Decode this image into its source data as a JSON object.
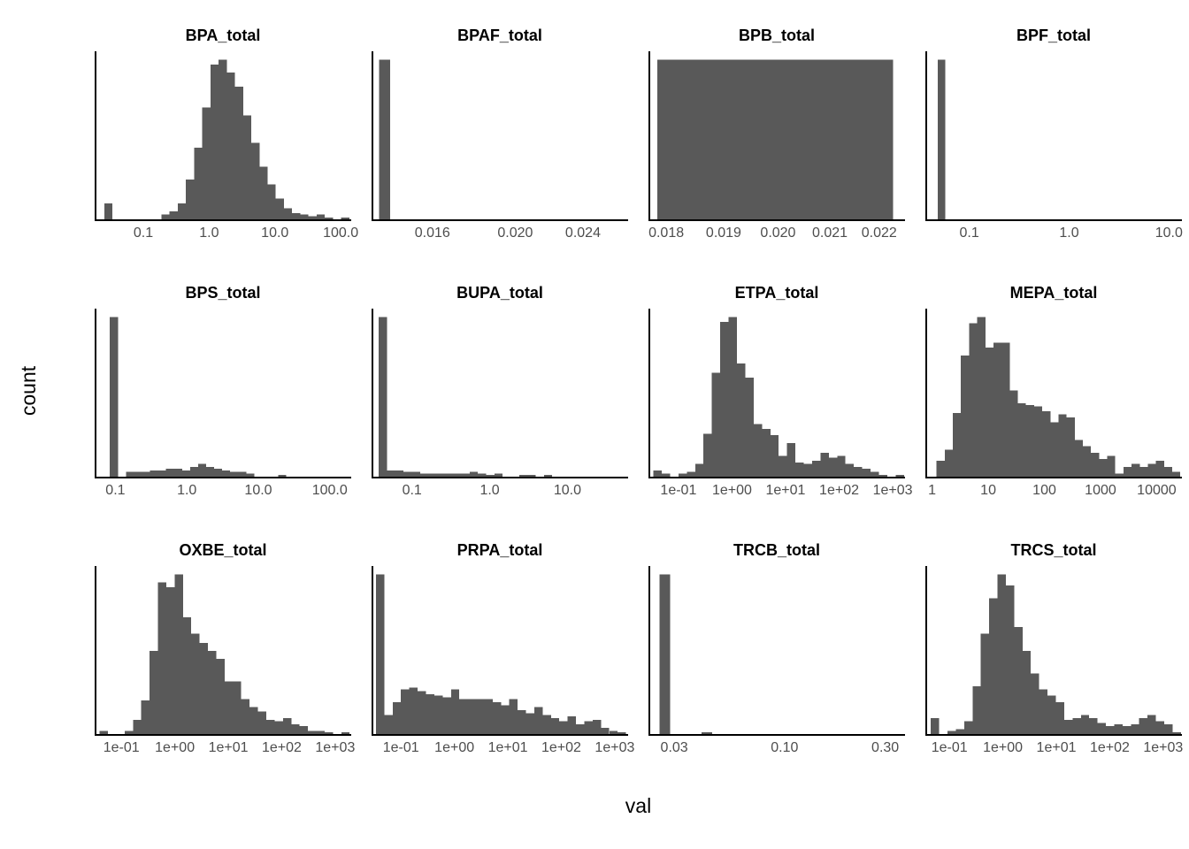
{
  "figure": {
    "y_axis_label": "count",
    "x_axis_label": "val"
  },
  "colors": {
    "bar_fill": "#595959",
    "axis_line": "#000000",
    "tick_label": "#4d4d4d",
    "strip_text": "#000000",
    "background": "#ffffff"
  },
  "chart_data": [
    {
      "type": "bar",
      "subtype": "histogram-log-x",
      "title": "BPA_total",
      "ylabel": "count",
      "y_units": "relative_pct_of_facet_max (no y tick labels shown)",
      "xlim_log10": [
        -1.74,
        2.16
      ],
      "x_ticks": [
        {
          "label": "0.1",
          "value": 0.1
        },
        {
          "label": "1.0",
          "value": 1.0
        },
        {
          "label": "10.0",
          "value": 10.0
        },
        {
          "label": "100.0",
          "value": 100.0
        }
      ],
      "bins": {
        "start_log10": -1.62,
        "width_log10": 0.125,
        "heights_rel": [
          10,
          0,
          0,
          0,
          0,
          0,
          0,
          3,
          5,
          10,
          25,
          45,
          70,
          97,
          100,
          92,
          83,
          65,
          48,
          33,
          22,
          13,
          7,
          4,
          3,
          2,
          3,
          1,
          0,
          1
        ]
      }
    },
    {
      "type": "bar",
      "subtype": "histogram-log-x",
      "title": "BPAF_total",
      "ylabel": "count",
      "y_units": "relative_pct_of_facet_max",
      "xlim_log10": [
        -1.867,
        -1.567
      ],
      "x_ticks": [
        {
          "label": "0.016",
          "value": 0.016
        },
        {
          "label": "0.020",
          "value": 0.02
        },
        {
          "label": "0.024",
          "value": 0.024
        }
      ],
      "bins": {
        "start_log10": -1.86,
        "width_log10": 0.013,
        "heights_rel": [
          100
        ]
      }
    },
    {
      "type": "bar",
      "subtype": "histogram-log-x",
      "title": "BPB_total",
      "ylabel": "count",
      "y_units": "relative_pct_of_facet_max",
      "xlim_log10": [
        -1.752,
        -1.647
      ],
      "x_ticks": [
        {
          "label": "0.018",
          "value": 0.018
        },
        {
          "label": "0.019",
          "value": 0.019
        },
        {
          "label": "0.020",
          "value": 0.02
        },
        {
          "label": "0.021",
          "value": 0.021
        },
        {
          "label": "0.022",
          "value": 0.022
        }
      ],
      "bins": {
        "start_log10": -1.749,
        "width_log10": 0.097,
        "heights_rel": [
          100
        ]
      }
    },
    {
      "type": "bar",
      "subtype": "histogram-log-x",
      "title": "BPF_total",
      "ylabel": "count",
      "y_units": "relative_pct_of_facet_max",
      "xlim_log10": [
        -1.44,
        1.13
      ],
      "x_ticks": [
        {
          "label": "0.1",
          "value": 0.1
        },
        {
          "label": "1.0",
          "value": 1.0
        },
        {
          "label": "10.0",
          "value": 10.0
        }
      ],
      "bins": {
        "start_log10": -1.335,
        "width_log10": 0.08,
        "heights_rel": [
          100
        ]
      }
    },
    {
      "type": "bar",
      "subtype": "histogram-log-x",
      "title": "BPS_total",
      "ylabel": "count",
      "y_units": "relative_pct_of_facet_max",
      "xlim_log10": [
        -1.29,
        2.3
      ],
      "x_ticks": [
        {
          "label": "0.1",
          "value": 0.1
        },
        {
          "label": "1.0",
          "value": 1.0
        },
        {
          "label": "10.0",
          "value": 10.0
        },
        {
          "label": "100.0",
          "value": 100.0
        }
      ],
      "bins": {
        "start_log10": -1.1,
        "width_log10": 0.113,
        "heights_rel": [
          100,
          0,
          3,
          3,
          3,
          4,
          4,
          5,
          5,
          4,
          6,
          8,
          6,
          5,
          4,
          3,
          3,
          2,
          0,
          0,
          0,
          1,
          0,
          0,
          0,
          0,
          0,
          0,
          0,
          0
        ]
      }
    },
    {
      "type": "bar",
      "subtype": "histogram-log-x",
      "title": "BUPA_total",
      "ylabel": "count",
      "y_units": "relative_pct_of_facet_max",
      "xlim_log10": [
        -1.52,
        1.78
      ],
      "x_ticks": [
        {
          "label": "0.1",
          "value": 0.1
        },
        {
          "label": "1.0",
          "value": 1.0
        },
        {
          "label": "10.0",
          "value": 10.0
        }
      ],
      "bins": {
        "start_log10": -1.45,
        "width_log10": 0.107,
        "heights_rel": [
          100,
          4,
          4,
          3,
          3,
          2,
          2,
          2,
          2,
          2,
          2,
          3,
          2,
          1,
          2,
          0,
          0,
          1,
          1,
          0,
          1,
          0,
          0,
          0,
          0,
          0,
          0,
          0,
          0,
          0
        ]
      }
    },
    {
      "type": "bar",
      "subtype": "histogram-log-x",
      "title": "ETPA_total",
      "ylabel": "count",
      "y_units": "relative_pct_of_facet_max",
      "xlim_log10": [
        -1.56,
        3.23
      ],
      "x_ticks": [
        {
          "label": "1e-01",
          "value": 0.1
        },
        {
          "label": "1e+00",
          "value": 1
        },
        {
          "label": "1e+01",
          "value": 10
        },
        {
          "label": "1e+02",
          "value": 100
        },
        {
          "label": "1e+03",
          "value": 1000
        }
      ],
      "bins": {
        "start_log10": -1.5,
        "width_log10": 0.157,
        "heights_rel": [
          4,
          2,
          0,
          2,
          3,
          8,
          27,
          65,
          97,
          100,
          71,
          62,
          33,
          30,
          26,
          13,
          21,
          9,
          8,
          10,
          15,
          12,
          13,
          8,
          6,
          5,
          3,
          1,
          0,
          1
        ]
      }
    },
    {
      "type": "bar",
      "subtype": "histogram-log-x",
      "title": "MEPA_total",
      "ylabel": "count",
      "y_units": "relative_pct_of_facet_max",
      "xlim_log10": [
        -0.12,
        4.45
      ],
      "x_ticks": [
        {
          "label": "1",
          "value": 1
        },
        {
          "label": "10",
          "value": 10
        },
        {
          "label": "100",
          "value": 100
        },
        {
          "label": "1000",
          "value": 1000
        },
        {
          "label": "10000",
          "value": 10000
        }
      ],
      "bins": {
        "start_log10": 0.05,
        "width_log10": 0.1457,
        "heights_rel": [
          10,
          17,
          40,
          76,
          96,
          100,
          81,
          84,
          84,
          54,
          46,
          45,
          44,
          41,
          34,
          39,
          37,
          23,
          19,
          15,
          11,
          13,
          2,
          6,
          8,
          6,
          8,
          10,
          6,
          3
        ]
      }
    },
    {
      "type": "bar",
      "subtype": "histogram-log-x",
      "title": "OXBE_total",
      "ylabel": "count",
      "y_units": "relative_pct_of_facet_max",
      "xlim_log10": [
        -1.5,
        3.3
      ],
      "x_ticks": [
        {
          "label": "1e-01",
          "value": 0.1
        },
        {
          "label": "1e+00",
          "value": 1
        },
        {
          "label": "1e+01",
          "value": 10
        },
        {
          "label": "1e+02",
          "value": 100
        },
        {
          "label": "1e+03",
          "value": 1000
        }
      ],
      "bins": {
        "start_log10": -1.44,
        "width_log10": 0.157,
        "heights_rel": [
          2,
          0,
          0,
          2,
          9,
          21,
          52,
          95,
          92,
          100,
          73,
          63,
          57,
          52,
          47,
          33,
          33,
          22,
          17,
          14,
          9,
          8,
          10,
          6,
          5,
          2,
          2,
          1,
          0,
          1
        ]
      }
    },
    {
      "type": "bar",
      "subtype": "histogram-log-x",
      "title": "PRPA_total",
      "ylabel": "count",
      "y_units": "relative_pct_of_facet_max",
      "xlim_log10": [
        -1.55,
        3.25
      ],
      "x_ticks": [
        {
          "label": "1e-01",
          "value": 0.1
        },
        {
          "label": "1e+00",
          "value": 1
        },
        {
          "label": "1e+01",
          "value": 10
        },
        {
          "label": "1e+02",
          "value": 100
        },
        {
          "label": "1e+03",
          "value": 1000
        }
      ],
      "bins": {
        "start_log10": -1.5,
        "width_log10": 0.157,
        "heights_rel": [
          100,
          12,
          20,
          28,
          29,
          27,
          25,
          24,
          23,
          28,
          22,
          22,
          22,
          22,
          20,
          18,
          22,
          15,
          13,
          17,
          12,
          10,
          8,
          11,
          6,
          8,
          9,
          4,
          2,
          1
        ]
      }
    },
    {
      "type": "bar",
      "subtype": "histogram-log-x",
      "title": "TRCB_total",
      "ylabel": "count",
      "y_units": "relative_pct_of_facet_max",
      "xlim_log10": [
        -1.645,
        -0.429
      ],
      "x_ticks": [
        {
          "label": "0.03",
          "value": 0.03
        },
        {
          "label": "0.10",
          "value": 0.1
        },
        {
          "label": "0.30",
          "value": 0.3
        }
      ],
      "bins": {
        "start_log10": -1.6,
        "width_log10": 0.05,
        "heights_rel": [
          100,
          0,
          0,
          0,
          1
        ]
      }
    },
    {
      "type": "bar",
      "subtype": "histogram-log-x",
      "title": "TRCS_total",
      "ylabel": "count",
      "y_units": "relative_pct_of_facet_max",
      "xlim_log10": [
        -1.45,
        3.35
      ],
      "x_ticks": [
        {
          "label": "1e-01",
          "value": 0.1
        },
        {
          "label": "1e+00",
          "value": 1
        },
        {
          "label": "1e+01",
          "value": 10
        },
        {
          "label": "1e+02",
          "value": 100
        },
        {
          "label": "1e+03",
          "value": 1000
        }
      ],
      "bins": {
        "start_log10": -1.38,
        "width_log10": 0.157,
        "heights_rel": [
          10,
          0,
          2,
          3,
          8,
          30,
          63,
          85,
          100,
          93,
          67,
          52,
          38,
          28,
          24,
          20,
          9,
          10,
          12,
          10,
          7,
          5,
          6,
          5,
          6,
          10,
          12,
          8,
          6,
          1
        ]
      }
    }
  ]
}
